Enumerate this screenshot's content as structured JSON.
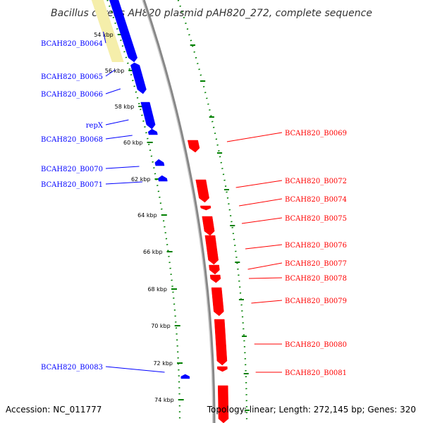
{
  "title": "Bacillus cereus AH820 plasmid pAH820_272, complete sequence",
  "footer": {
    "accession": "Accession: NC_011777",
    "topology": "Topology: linear; Length: 272,145 bp; Genes: 320"
  },
  "colors": {
    "reverse_strand": "#0000ff",
    "forward_strand": "#ff0000",
    "backbone": "#888888",
    "ticks": "#008000",
    "highlight": "#f5eeaa",
    "title": "#333333"
  },
  "ruler_ticks": [
    {
      "label": "54 kbp",
      "kbp": 54
    },
    {
      "label": "56 kbp",
      "kbp": 56
    },
    {
      "label": "58 kbp",
      "kbp": 58
    },
    {
      "label": "60 kbp",
      "kbp": 60
    },
    {
      "label": "62 kbp",
      "kbp": 62
    },
    {
      "label": "64 kbp",
      "kbp": 64
    },
    {
      "label": "66 kbp",
      "kbp": 66
    },
    {
      "label": "68 kbp",
      "kbp": 68
    },
    {
      "label": "70 kbp",
      "kbp": 70
    },
    {
      "label": "72 kbp",
      "kbp": 72
    },
    {
      "label": "74 kbp",
      "kbp": 74
    }
  ],
  "genes_reverse": [
    {
      "label": "BCAH820_B0064"
    },
    {
      "label": "BCAH820_B0065"
    },
    {
      "label": "BCAH820_B0066"
    },
    {
      "label": "repX"
    },
    {
      "label": "BCAH820_B0068"
    },
    {
      "label": "BCAH820_B0070"
    },
    {
      "label": "BCAH820_B0071"
    },
    {
      "label": "BCAH820_B0083"
    }
  ],
  "genes_forward": [
    {
      "label": "BCAH820_B0069"
    },
    {
      "label": "BCAH820_B0072"
    },
    {
      "label": "BCAH820_B0074"
    },
    {
      "label": "BCAH820_B0075"
    },
    {
      "label": "BCAH820_B0076"
    },
    {
      "label": "BCAH820_B0077"
    },
    {
      "label": "BCAH820_B0078"
    },
    {
      "label": "BCAH820_B0079"
    },
    {
      "label": "BCAH820_B0080"
    },
    {
      "label": "BCAH820_B0081"
    }
  ]
}
